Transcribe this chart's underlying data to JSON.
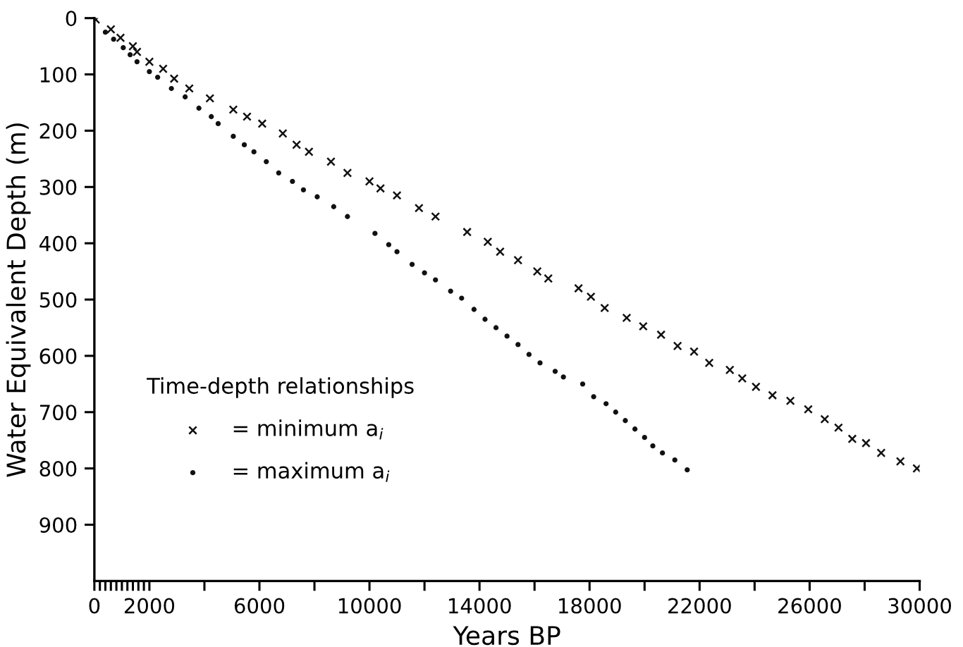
{
  "chart_data": {
    "type": "scatter",
    "xlabel": "Years BP",
    "ylabel": "Water Equivalent Depth (m)",
    "legend_title": "Time-depth relationships",
    "legend": "lower left",
    "xlim": [
      0,
      30000
    ],
    "ylim": [
      1000,
      0
    ],
    "xticks": [
      0,
      {
        "value": 200,
        "label": null
      },
      {
        "value": 400,
        "label": null
      },
      {
        "value": 600,
        "label": null
      },
      {
        "value": 800,
        "label": null
      },
      {
        "value": 1000,
        "label": null
      },
      {
        "value": 1200,
        "label": null
      },
      {
        "value": 1400,
        "label": null
      },
      {
        "value": 1600,
        "label": null
      },
      {
        "value": 1800,
        "label": null
      },
      2000,
      {
        "value": 4000,
        "label": null
      },
      6000,
      {
        "value": 8000,
        "label": null
      },
      10000,
      {
        "value": 12000,
        "label": null
      },
      14000,
      {
        "value": 16000,
        "label": null
      },
      18000,
      {
        "value": 20000,
        "label": null
      },
      22000,
      {
        "value": 24000,
        "label": null
      },
      26000,
      {
        "value": 28000,
        "label": null
      },
      30000
    ],
    "yticks": [
      0,
      100,
      200,
      300,
      400,
      500,
      600,
      700,
      800,
      900
    ],
    "grid": false,
    "series": [
      {
        "name": "= minimum a$_{i}$",
        "color": "#111111",
        "marker": "cross",
        "x": [
          50,
          600,
          950,
          1400,
          1550,
          2000,
          2500,
          2900,
          3450,
          4200,
          5050,
          5550,
          6100,
          6850,
          7350,
          7800,
          8600,
          9200,
          10000,
          10400,
          11000,
          11800,
          12400,
          13550,
          14300,
          14750,
          15400,
          16100,
          16500,
          17600,
          18050,
          18550,
          19350,
          19950,
          20600,
          21200,
          21800,
          22350,
          23100,
          23550,
          24050,
          24650,
          25300,
          25950,
          26550,
          27050,
          27550,
          28050,
          28600,
          29300,
          29900
        ],
        "values": [
          2.5,
          20,
          35,
          50,
          60,
          77.5,
          90,
          107.5,
          125,
          142.5,
          162.5,
          175,
          187.5,
          205,
          225,
          237.5,
          255,
          275,
          290,
          302.5,
          315,
          337.5,
          352.5,
          380,
          397.5,
          415,
          430,
          450,
          462.5,
          480,
          495,
          515,
          532.5,
          547.5,
          562.5,
          582.5,
          592.5,
          612.5,
          625,
          640,
          655,
          670,
          680,
          695,
          712.5,
          727.5,
          747.5,
          755,
          772.5,
          787.5,
          800
        ]
      },
      {
        "name": "= maximum a$_{i}$",
        "color": "#111111",
        "marker": "circle",
        "x": [
          0,
          400,
          700,
          1050,
          1300,
          1550,
          2000,
          2300,
          2800,
          3300,
          3800,
          4250,
          4500,
          5050,
          5450,
          5800,
          6250,
          6700,
          7200,
          7600,
          8100,
          8700,
          9200,
          10200,
          10700,
          11000,
          11550,
          12000,
          12400,
          12950,
          13350,
          13800,
          14200,
          14600,
          15000,
          15400,
          15800,
          16200,
          16750,
          17050,
          17750,
          18150,
          18600,
          18950,
          19300,
          19650,
          20000,
          20300,
          20650,
          21100,
          21550
        ],
        "values": [
          0,
          25,
          37.5,
          52.5,
          65,
          77.5,
          95,
          105,
          125,
          140,
          160,
          175,
          187.5,
          210,
          225,
          237.5,
          255,
          275,
          290,
          305,
          317.5,
          335,
          352.5,
          382.5,
          402.5,
          415,
          437.5,
          452.5,
          465,
          485,
          497.5,
          517.5,
          535,
          550,
          565,
          580,
          597.5,
          612.5,
          627.5,
          637.5,
          650,
          672.5,
          685,
          700,
          715,
          730,
          745,
          760,
          772.5,
          785,
          802.5
        ]
      }
    ]
  }
}
